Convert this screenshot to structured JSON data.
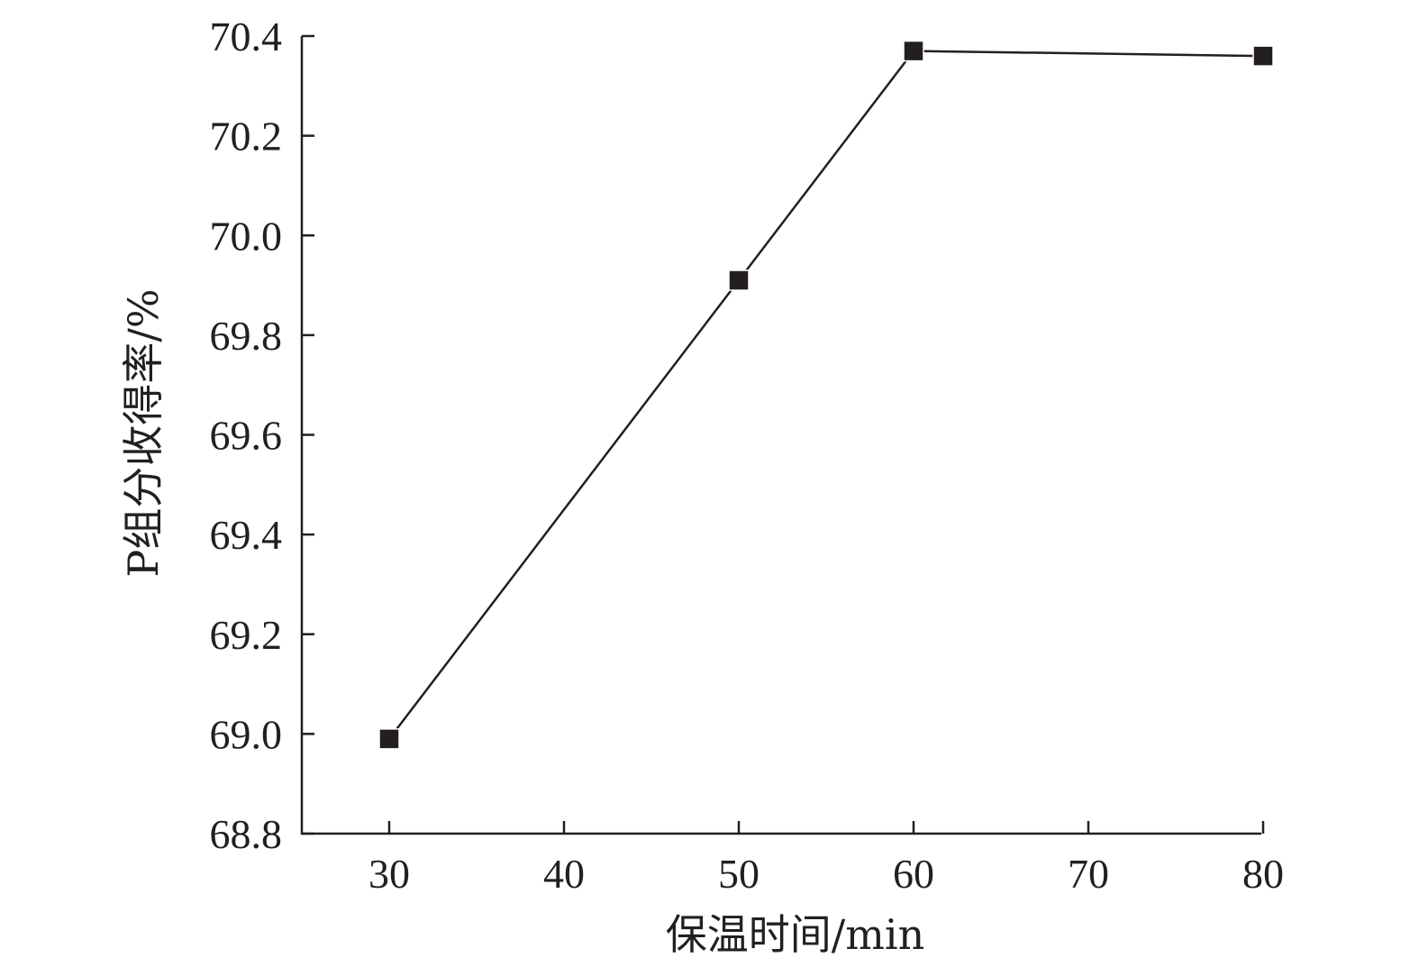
{
  "chart_data": {
    "type": "line",
    "xlabel": "保温时间/min",
    "ylabel": "P组分收得率/%",
    "xlim": [
      25,
      80
    ],
    "ylim": [
      68.8,
      70.4
    ],
    "x_ticks": [
      30,
      40,
      50,
      60,
      70,
      80
    ],
    "y_ticks": [
      68.8,
      69.0,
      69.2,
      69.4,
      69.6,
      69.8,
      70.0,
      70.2,
      70.4
    ],
    "grid": false,
    "series": [
      {
        "x": [
          30,
          50,
          60,
          80
        ],
        "y": [
          68.99,
          69.91,
          70.37,
          70.36
        ],
        "marker": "square",
        "color": "#231f20"
      }
    ]
  }
}
